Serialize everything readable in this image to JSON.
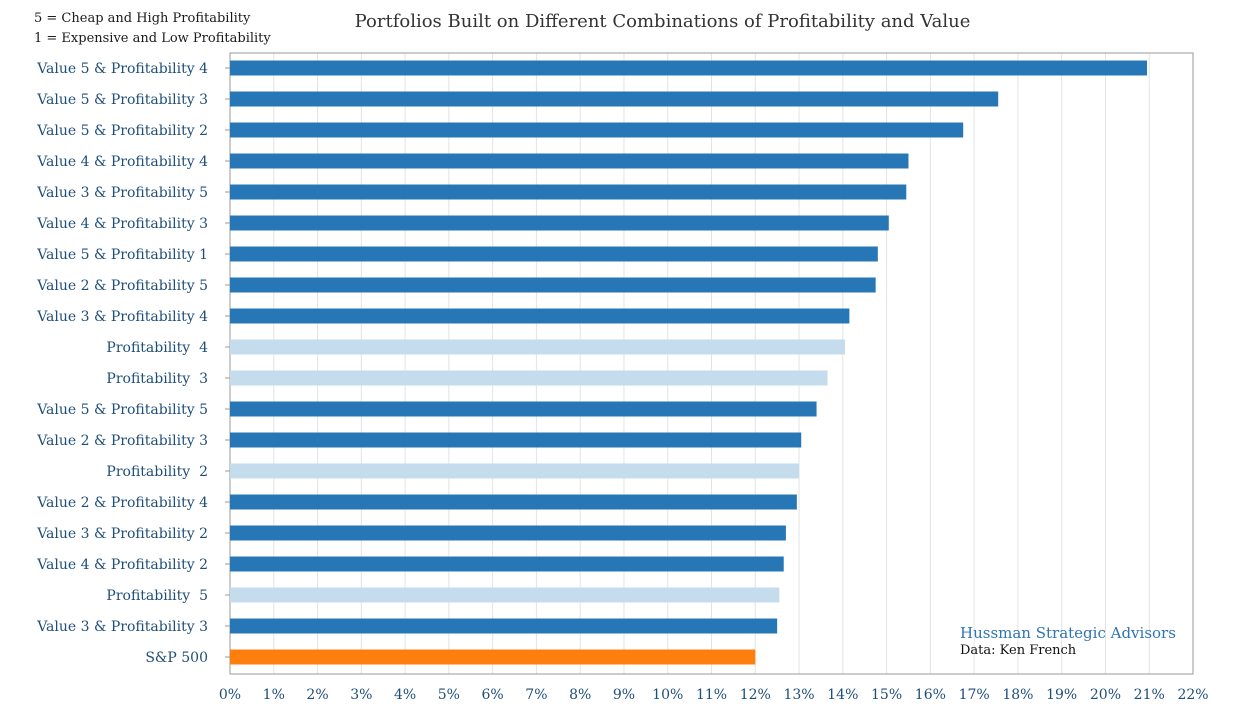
{
  "legend_notes": {
    "line1": "5 = Cheap and High Profitability",
    "line2": "1 = Expensive and Low Profitability"
  },
  "credits": {
    "brand": "Hussman Strategic Advisors",
    "source": "Data: Ken French"
  },
  "colors": {
    "value_profitability": "#2777b6",
    "profitability_only": "#c5dced",
    "benchmark": "#ff7f0e"
  },
  "chart_data": {
    "type": "bar",
    "orientation": "horizontal",
    "title": "Portfolios Built on Different Combinations of Profitability and Value",
    "xlabel": "",
    "ylabel": "",
    "xlim": [
      0,
      22
    ],
    "x_ticks": [
      0,
      1,
      2,
      3,
      4,
      5,
      6,
      7,
      8,
      9,
      10,
      11,
      12,
      13,
      14,
      15,
      16,
      17,
      18,
      19,
      20,
      21,
      22
    ],
    "x_tick_format": "percent",
    "grid": "vertical",
    "categories": [
      "Value 5 & Profitability 4",
      "Value 5 & Profitability 3",
      "Value 5 & Profitability 2",
      "Value 4 & Profitability 4",
      "Value 3 & Profitability 5",
      "Value 4 & Profitability 3",
      "Value 5 & Profitability 1",
      "Value 2 & Profitability 5",
      "Value 3 & Profitability 4",
      "Profitability  4",
      "Profitability  3",
      "Value 5 & Profitability 5",
      "Value 2 & Profitability 3",
      "Profitability  2",
      "Value 2 & Profitability 4",
      "Value 3 & Profitability 2",
      "Value 4 & Profitability 2",
      "Profitability  5",
      "Value 3 & Profitability 3",
      "S&P 500"
    ],
    "values": [
      20.95,
      17.55,
      16.75,
      15.5,
      15.45,
      15.05,
      14.8,
      14.75,
      14.15,
      14.05,
      13.65,
      13.4,
      13.05,
      13.0,
      12.95,
      12.7,
      12.65,
      12.55,
      12.5,
      12.0
    ],
    "bar_groups": [
      "value_profitability",
      "value_profitability",
      "value_profitability",
      "value_profitability",
      "value_profitability",
      "value_profitability",
      "value_profitability",
      "value_profitability",
      "value_profitability",
      "profitability_only",
      "profitability_only",
      "value_profitability",
      "value_profitability",
      "profitability_only",
      "value_profitability",
      "value_profitability",
      "value_profitability",
      "profitability_only",
      "value_profitability",
      "benchmark"
    ]
  }
}
